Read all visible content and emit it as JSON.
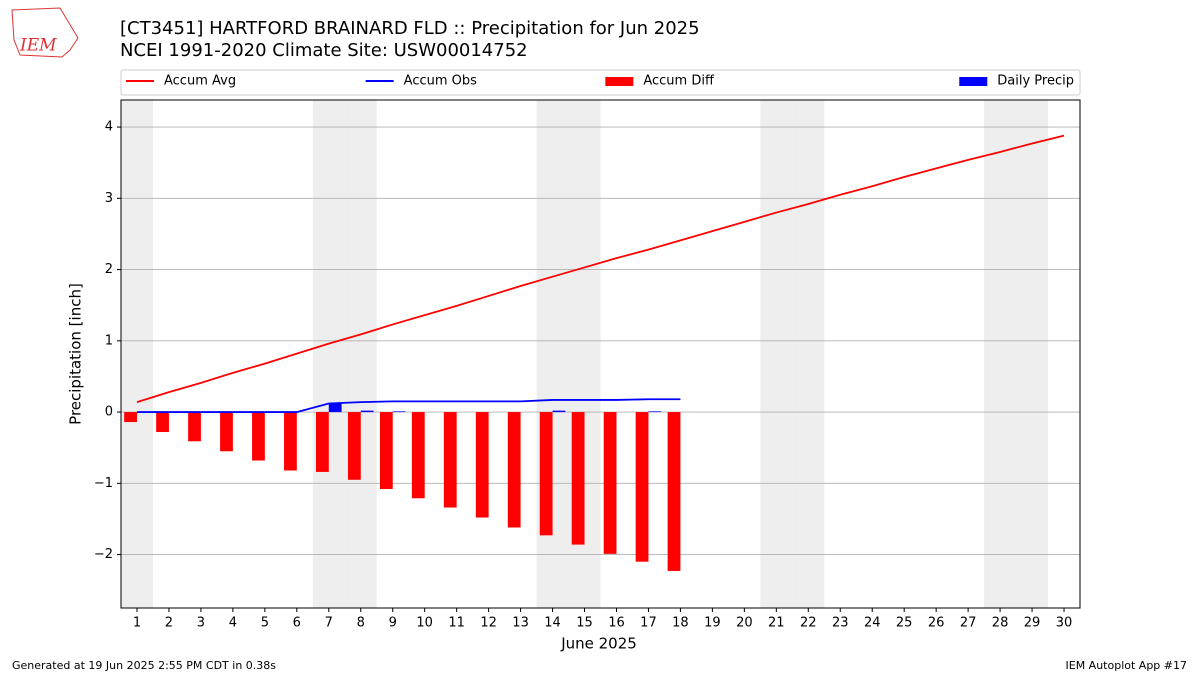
{
  "logo": "IEM",
  "footer_left": "Generated at 19 Jun 2025 2:55 PM CDT in 0.38s",
  "footer_right": "IEM Autoplot App #17",
  "chart_data": {
    "type": "combo",
    "title": "[CT3451] HARTFORD BRAINARD FLD :: Precipitation for Jun 2025",
    "subtitle": "NCEI 1991-2020 Climate Site: USW00014752",
    "x_label": "June 2025",
    "y_label": "Precipitation [inch]",
    "x": [
      1,
      2,
      3,
      4,
      5,
      6,
      7,
      8,
      9,
      10,
      11,
      12,
      13,
      14,
      15,
      16,
      17,
      18,
      19,
      20,
      21,
      22,
      23,
      24,
      25,
      26,
      27,
      28,
      29,
      30
    ],
    "shaded_days": [
      1,
      7,
      8,
      14,
      15,
      21,
      22,
      28,
      29
    ],
    "series": [
      {
        "name": "Accum Avg",
        "type": "line",
        "color": "#ff0000",
        "values": [
          0.14,
          0.28,
          0.41,
          0.55,
          0.68,
          0.82,
          0.96,
          1.09,
          1.23,
          1.36,
          1.49,
          1.63,
          1.77,
          1.9,
          2.03,
          2.16,
          2.28,
          2.41,
          2.54,
          2.67,
          2.8,
          2.92,
          3.05,
          3.17,
          3.3,
          3.42,
          3.54,
          3.65,
          3.77,
          3.88
        ]
      },
      {
        "name": "Accum Obs",
        "type": "line",
        "color": "#0000ff",
        "values": [
          0,
          0,
          0,
          0,
          0,
          0,
          0.12,
          0.14,
          0.15,
          0.15,
          0.15,
          0.15,
          0.15,
          0.17,
          0.17,
          0.17,
          0.18,
          0.18,
          null,
          null,
          null,
          null,
          null,
          null,
          null,
          null,
          null,
          null,
          null,
          null
        ]
      },
      {
        "name": "Accum Diff",
        "type": "bar",
        "color": "#ff0000",
        "values": [
          -0.14,
          -0.28,
          -0.41,
          -0.55,
          -0.68,
          -0.82,
          -0.84,
          -0.95,
          -1.08,
          -1.21,
          -1.34,
          -1.48,
          -1.62,
          -1.73,
          -1.86,
          -1.99,
          -2.1,
          -2.23,
          null,
          null,
          null,
          null,
          null,
          null,
          null,
          null,
          null,
          null,
          null,
          null
        ]
      },
      {
        "name": "Daily Precip",
        "type": "bar",
        "color": "#0000ff",
        "values": [
          0,
          0,
          0,
          0,
          0,
          0,
          0.12,
          0.02,
          0.01,
          0,
          0,
          0,
          0,
          0.02,
          0,
          0,
          0.01,
          0,
          null,
          null,
          null,
          null,
          null,
          null,
          null,
          null,
          null,
          null,
          null,
          null
        ]
      }
    ],
    "xlim": [
      0.5,
      30.5
    ],
    "xticks": [
      1,
      2,
      3,
      4,
      5,
      6,
      7,
      8,
      9,
      10,
      11,
      12,
      13,
      14,
      15,
      16,
      17,
      18,
      19,
      20,
      21,
      22,
      23,
      24,
      25,
      26,
      27,
      28,
      29,
      30
    ],
    "ylim": [
      -2.75,
      4.38
    ],
    "yticks": [
      {
        "value": -2,
        "label": "−2"
      },
      {
        "value": -1,
        "label": "−1"
      },
      0,
      1,
      2,
      3,
      4
    ],
    "grid": true,
    "legend": "top"
  }
}
